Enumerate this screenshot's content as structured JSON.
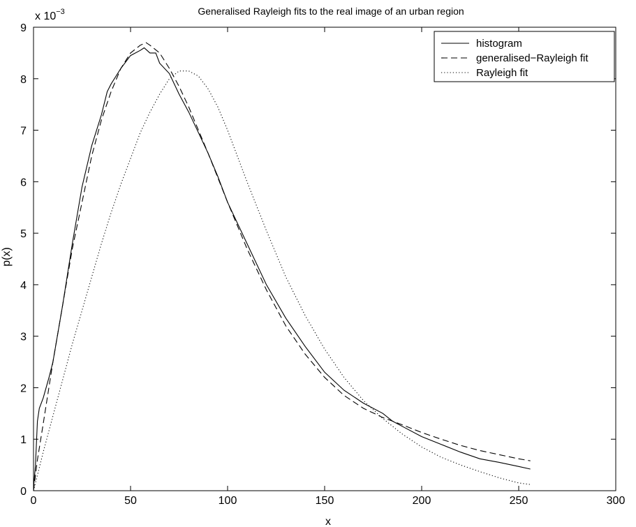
{
  "chart_data": {
    "type": "line",
    "title": "Generalised Rayleigh fits to the real image of an urban region",
    "xlabel": "x",
    "ylabel": "p(x)",
    "y_multiplier_label": "x 10",
    "y_multiplier_exponent": "−3",
    "xlim": [
      0,
      300
    ],
    "ylim": [
      0,
      9
    ],
    "y_scale_note": "values in units of 1e-3",
    "xticks": [
      0,
      50,
      100,
      150,
      200,
      250,
      300
    ],
    "yticks": [
      0,
      1,
      2,
      3,
      4,
      5,
      6,
      7,
      8,
      9
    ],
    "grid": false,
    "legend_position": "top-right",
    "series": [
      {
        "name": "histogram",
        "style": "solid",
        "x": [
          0,
          1,
          2,
          3,
          5,
          8,
          10,
          15,
          20,
          25,
          30,
          35,
          38,
          40,
          45,
          50,
          55,
          57,
          60,
          63,
          65,
          70,
          75,
          80,
          85,
          90,
          95,
          100,
          110,
          120,
          130,
          140,
          150,
          160,
          170,
          180,
          185,
          190,
          200,
          210,
          220,
          230,
          240,
          250,
          256
        ],
        "y": [
          0.05,
          0.5,
          1.35,
          1.6,
          1.8,
          2.2,
          2.5,
          3.6,
          4.8,
          5.9,
          6.7,
          7.3,
          7.75,
          7.9,
          8.2,
          8.45,
          8.55,
          8.6,
          8.5,
          8.5,
          8.3,
          8.1,
          7.7,
          7.35,
          6.95,
          6.55,
          6.1,
          5.6,
          4.8,
          4.0,
          3.35,
          2.8,
          2.3,
          1.95,
          1.7,
          1.5,
          1.35,
          1.25,
          1.05,
          0.9,
          0.75,
          0.62,
          0.55,
          0.47,
          0.42
        ]
      },
      {
        "name": "generalised−Rayleigh fit",
        "style": "dashed",
        "x": [
          0,
          2,
          5,
          10,
          15,
          20,
          25,
          30,
          35,
          40,
          45,
          50,
          55,
          58,
          60,
          65,
          70,
          75,
          80,
          90,
          100,
          110,
          120,
          130,
          140,
          150,
          160,
          170,
          180,
          190,
          200,
          210,
          220,
          230,
          240,
          250,
          256
        ],
        "y": [
          0,
          0.6,
          1.3,
          2.5,
          3.6,
          4.7,
          5.6,
          6.5,
          7.2,
          7.75,
          8.2,
          8.5,
          8.65,
          8.7,
          8.65,
          8.5,
          8.2,
          7.85,
          7.45,
          6.55,
          5.6,
          4.7,
          3.9,
          3.2,
          2.65,
          2.2,
          1.85,
          1.6,
          1.42,
          1.28,
          1.13,
          1.0,
          0.88,
          0.78,
          0.7,
          0.62,
          0.58
        ]
      },
      {
        "name": "Rayleigh fit",
        "style": "dotted",
        "x": [
          0,
          2,
          5,
          10,
          15,
          20,
          25,
          30,
          35,
          40,
          45,
          50,
          55,
          60,
          65,
          70,
          75,
          80,
          85,
          90,
          95,
          100,
          110,
          120,
          130,
          140,
          150,
          160,
          170,
          180,
          190,
          200,
          210,
          220,
          230,
          240,
          250,
          256
        ],
        "y": [
          0,
          0.3,
          0.75,
          1.45,
          2.15,
          2.85,
          3.5,
          4.15,
          4.8,
          5.4,
          5.95,
          6.45,
          6.95,
          7.35,
          7.7,
          8.0,
          8.15,
          8.15,
          8.05,
          7.8,
          7.45,
          7.0,
          6.0,
          5.05,
          4.15,
          3.4,
          2.75,
          2.2,
          1.75,
          1.4,
          1.1,
          0.85,
          0.65,
          0.5,
          0.37,
          0.25,
          0.15,
          0.12
        ]
      }
    ]
  }
}
